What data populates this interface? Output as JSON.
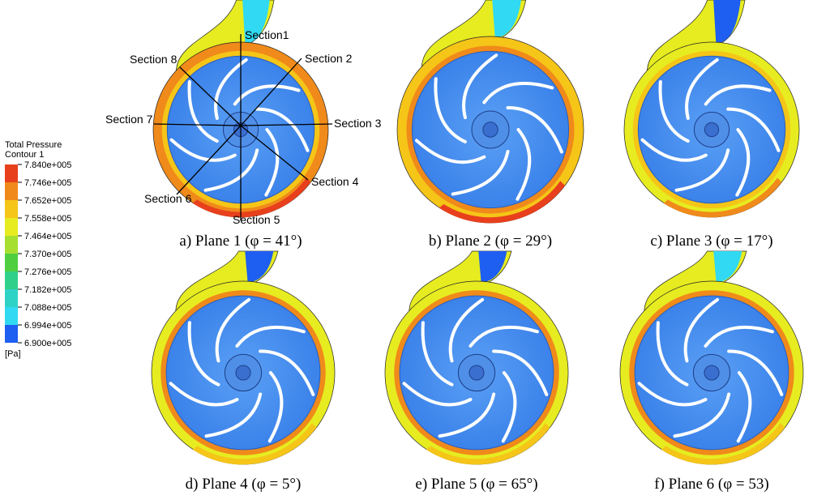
{
  "legend": {
    "title": "Total Pressure",
    "subtitle": "Contour 1",
    "labels": [
      "7.840e+005",
      "7.746e+005",
      "7.652e+005",
      "7.558e+005",
      "7.464e+005",
      "7.370e+005",
      "7.276e+005",
      "7.182e+005",
      "7.088e+005",
      "6.994e+005",
      "6.900e+005"
    ],
    "unit": "[Pa]"
  },
  "sections": [
    "Section1",
    "Section 2",
    "Section 3",
    "Section 4",
    "Section 5",
    "Section 6",
    "Section 7",
    "Section 8"
  ],
  "panels": [
    {
      "caption": "a) Plane 1 (φ = 41°)"
    },
    {
      "caption": "b) Plane 2 (φ = 29°)"
    },
    {
      "caption": "c) Plane 3 (φ = 17°)"
    },
    {
      "caption": "d) Plane 4 (φ = 5°)"
    },
    {
      "caption": "e) Plane 5 (φ = 65°)"
    },
    {
      "caption": "f) Plane 6 (φ = 53)"
    }
  ]
}
